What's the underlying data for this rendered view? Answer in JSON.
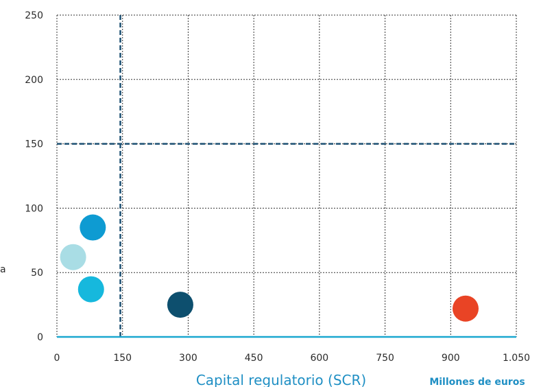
{
  "chart_data": {
    "type": "scatter",
    "xlabel": "Capital regulatorio (SCR)",
    "x_unit": "Millones de euros",
    "ylabel_fragment": "a",
    "xlim": [
      0,
      1050
    ],
    "ylim": [
      0,
      250
    ],
    "x_ticks": [
      {
        "value": 0,
        "label": "0"
      },
      {
        "value": 150,
        "label": "150"
      },
      {
        "value": 300,
        "label": "300"
      },
      {
        "value": 450,
        "label": "450"
      },
      {
        "value": 600,
        "label": "600"
      },
      {
        "value": 750,
        "label": "750"
      },
      {
        "value": 900,
        "label": "900"
      },
      {
        "value": 1050,
        "label": "1.050"
      }
    ],
    "y_ticks": [
      {
        "value": 0,
        "label": "0"
      },
      {
        "value": 50,
        "label": "50"
      },
      {
        "value": 100,
        "label": "100"
      },
      {
        "value": 150,
        "label": "150"
      },
      {
        "value": 200,
        "label": "200"
      },
      {
        "value": 250,
        "label": "250"
      }
    ],
    "grid": true,
    "reference_lines": [
      {
        "axis": "x",
        "value": 145,
        "color": "#1b4f72",
        "style": "dashed"
      },
      {
        "axis": "y",
        "value": 150,
        "color": "#1b4f72",
        "style": "dashed"
      }
    ],
    "points": [
      {
        "x": 37,
        "y": 62,
        "color": "#a9dde5"
      },
      {
        "x": 82,
        "y": 85,
        "color": "#0e9bd2"
      },
      {
        "x": 78,
        "y": 37,
        "color": "#16b8dd"
      },
      {
        "x": 282,
        "y": 25,
        "color": "#0d4f6e"
      },
      {
        "x": 934,
        "y": 22,
        "color": "#e94425"
      }
    ]
  }
}
